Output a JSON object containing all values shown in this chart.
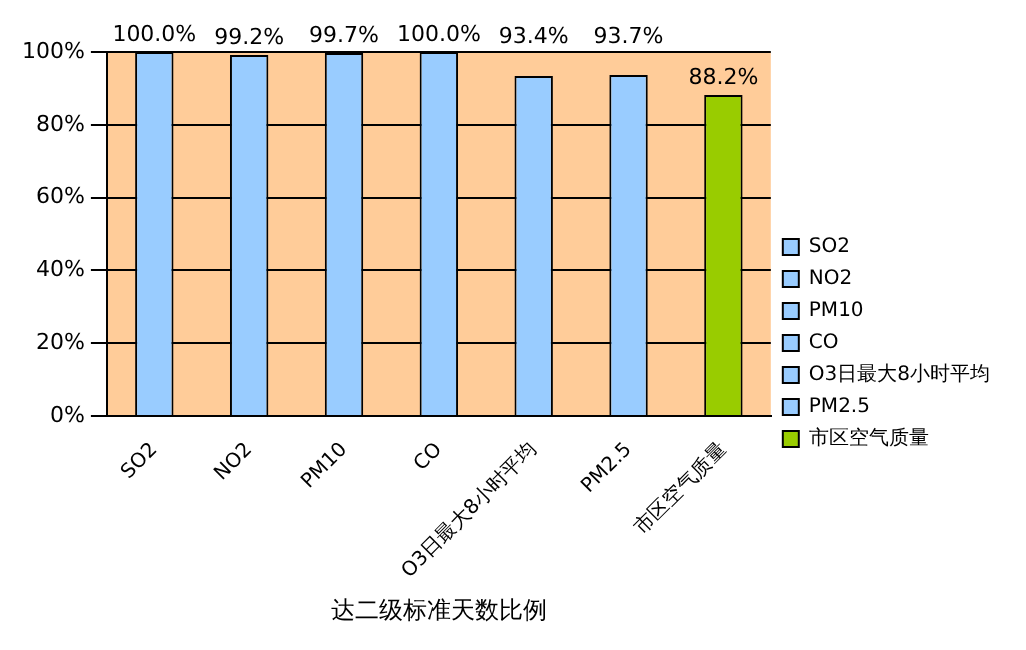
{
  "chart_data": {
    "type": "bar",
    "xlabel": "达二级标准天数比例",
    "categories": [
      "SO2",
      "NO2",
      "PM10",
      "CO",
      "O3日最大8小时平均",
      "PM2.5",
      "市区空气质量"
    ],
    "series": [
      {
        "name": "SO2",
        "color": "#99ccff",
        "values": [
          100,
          null,
          null,
          null,
          null,
          null,
          null
        ],
        "value_labels": [
          "100.0%",
          null,
          null,
          null,
          null,
          null,
          null
        ]
      },
      {
        "name": "NO2",
        "color": "#99ccff",
        "values": [
          null,
          99.2,
          null,
          null,
          null,
          null,
          null
        ],
        "value_labels": [
          null,
          "99.2%",
          null,
          null,
          null,
          null,
          null
        ]
      },
      {
        "name": "PM10",
        "color": "#99ccff",
        "values": [
          null,
          null,
          99.7,
          null,
          null,
          null,
          null
        ],
        "value_labels": [
          null,
          null,
          "99.7%",
          null,
          null,
          null,
          null
        ]
      },
      {
        "name": "CO",
        "color": "#99ccff",
        "values": [
          null,
          null,
          null,
          100,
          null,
          null,
          null
        ],
        "value_labels": [
          null,
          null,
          null,
          "100.0%",
          null,
          null,
          null
        ]
      },
      {
        "name": "O3日最大8小时平均",
        "color": "#99ccff",
        "values": [
          null,
          null,
          null,
          null,
          93.4,
          null,
          null
        ],
        "value_labels": [
          null,
          null,
          null,
          null,
          "93.4%",
          null,
          null
        ]
      },
      {
        "name": "PM2.5",
        "color": "#99ccff",
        "values": [
          null,
          null,
          null,
          null,
          null,
          93.7,
          null
        ],
        "value_labels": [
          null,
          null,
          null,
          null,
          null,
          "93.7%",
          null
        ]
      },
      {
        "name": "市区空气质量",
        "color": "#99cc00",
        "values": [
          null,
          null,
          null,
          null,
          null,
          null,
          88.2
        ],
        "value_labels": [
          null,
          null,
          null,
          null,
          null,
          null,
          "88.2%"
        ]
      }
    ],
    "ylim": [
      0,
      100
    ],
    "yticks": [
      {
        "value": 0,
        "label": "0%"
      },
      {
        "value": 20,
        "label": "20%"
      },
      {
        "value": 40,
        "label": "40%"
      },
      {
        "value": 60,
        "label": "60%"
      },
      {
        "value": 80,
        "label": "80%"
      },
      {
        "value": 100,
        "label": "100%"
      }
    ],
    "grid": "y",
    "legend": "right"
  }
}
